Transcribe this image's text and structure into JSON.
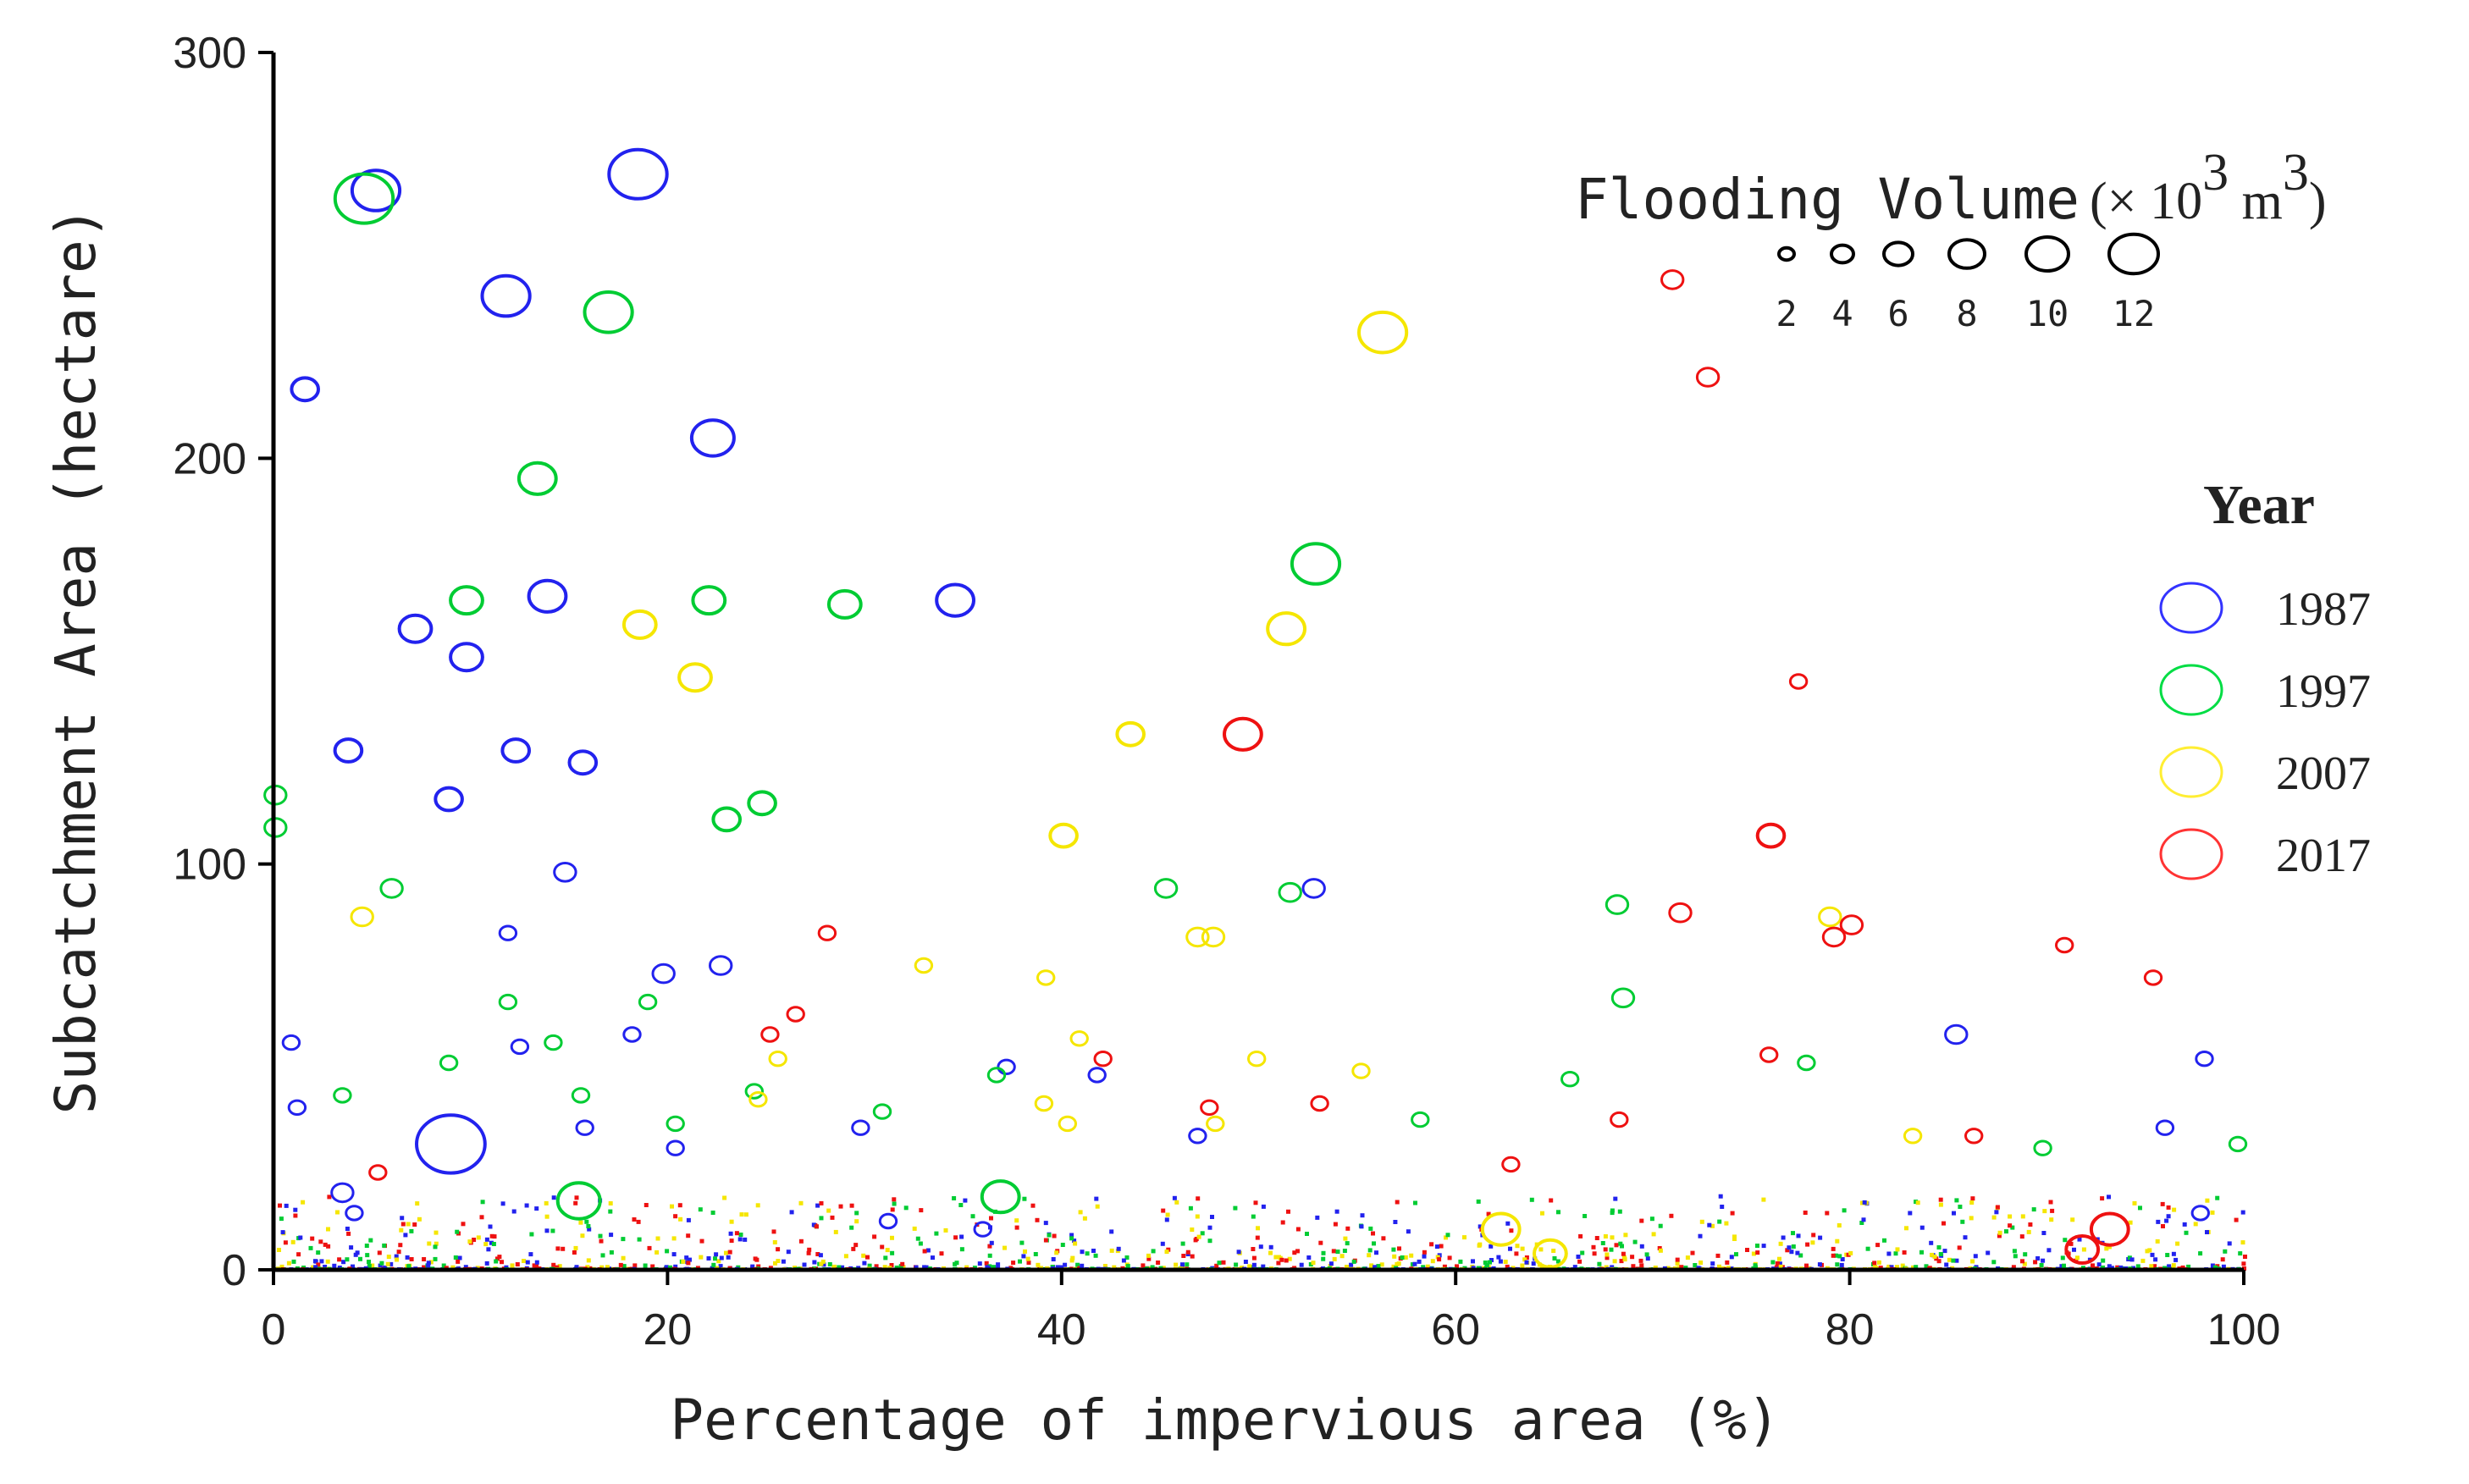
{
  "chart_data": {
    "type": "scatter",
    "xlabel": "Percentage of impervious area (%)",
    "ylabel": "Subcatchment Area (hectare)",
    "xlim": [
      0,
      100
    ],
    "ylim": [
      0,
      300
    ],
    "x_ticks": [
      "0",
      "20",
      "40",
      "60",
      "80",
      "100"
    ],
    "y_ticks": [
      "0",
      "100",
      "200",
      "300"
    ],
    "grid": false,
    "size_legend": {
      "title": "Flooding Volume",
      "unit_prefix": "(× 10",
      "unit_exp1": "3",
      "unit_mid": " m",
      "unit_exp2": "3",
      "unit_suffix": ")",
      "sizes": [
        2,
        4,
        6,
        8,
        10,
        12
      ],
      "labels": [
        "2",
        "4",
        "6",
        "8",
        "10",
        "12"
      ]
    },
    "color_legend": {
      "title": "Year",
      "placement": "right",
      "entries": [
        {
          "label": "1987",
          "color": "#3333ff"
        },
        {
          "label": "1997",
          "color": "#00dd44"
        },
        {
          "label": "2007",
          "color": "#ffee33"
        },
        {
          "label": "2017",
          "color": "#ff3333"
        }
      ]
    },
    "series": [
      {
        "name": "1987",
        "color": "#2222ee",
        "points": [
          {
            "x": 5.2,
            "y": 266,
            "v": 8
          },
          {
            "x": 18.5,
            "y": 270,
            "v": 10
          },
          {
            "x": 11.8,
            "y": 240,
            "v": 8
          },
          {
            "x": 1.6,
            "y": 217,
            "v": 4
          },
          {
            "x": 22.3,
            "y": 205,
            "v": 7
          },
          {
            "x": 7.2,
            "y": 158,
            "v": 5
          },
          {
            "x": 13.9,
            "y": 166,
            "v": 6
          },
          {
            "x": 9.8,
            "y": 151,
            "v": 5
          },
          {
            "x": 34.6,
            "y": 165,
            "v": 6
          },
          {
            "x": 3.8,
            "y": 128,
            "v": 4
          },
          {
            "x": 12.3,
            "y": 128,
            "v": 4
          },
          {
            "x": 15.7,
            "y": 125,
            "v": 4
          },
          {
            "x": 8.9,
            "y": 116,
            "v": 4
          },
          {
            "x": 14.8,
            "y": 98,
            "v": 3
          },
          {
            "x": 52.8,
            "y": 94,
            "v": 3
          },
          {
            "x": 22.7,
            "y": 75,
            "v": 3
          },
          {
            "x": 19.8,
            "y": 73,
            "v": 3
          },
          {
            "x": 9.0,
            "y": 31,
            "v": 12
          },
          {
            "x": 18.2,
            "y": 58,
            "v": 2
          },
          {
            "x": 11.9,
            "y": 83,
            "v": 2
          },
          {
            "x": 0.9,
            "y": 56,
            "v": 2
          },
          {
            "x": 1.2,
            "y": 40,
            "v": 2
          },
          {
            "x": 12.5,
            "y": 55,
            "v": 2
          },
          {
            "x": 3.5,
            "y": 19,
            "v": 3
          },
          {
            "x": 37.2,
            "y": 50,
            "v": 2
          },
          {
            "x": 41.8,
            "y": 48,
            "v": 2
          },
          {
            "x": 85.4,
            "y": 58,
            "v": 3
          },
          {
            "x": 98.0,
            "y": 52,
            "v": 2
          },
          {
            "x": 29.8,
            "y": 35,
            "v": 2
          },
          {
            "x": 46.9,
            "y": 33,
            "v": 2
          },
          {
            "x": 96.0,
            "y": 35,
            "v": 2
          },
          {
            "x": 15.8,
            "y": 35,
            "v": 2
          },
          {
            "x": 20.4,
            "y": 30,
            "v": 2
          },
          {
            "x": 4.1,
            "y": 14,
            "v": 2
          },
          {
            "x": 31.2,
            "y": 12,
            "v": 2
          },
          {
            "x": 36.0,
            "y": 10,
            "v": 2
          },
          {
            "x": 97.8,
            "y": 14,
            "v": 2
          }
        ]
      },
      {
        "name": "1997",
        "color": "#00cc33",
        "points": [
          {
            "x": 4.6,
            "y": 264,
            "v": 10
          },
          {
            "x": 17.0,
            "y": 236,
            "v": 8
          },
          {
            "x": 13.4,
            "y": 195,
            "v": 6
          },
          {
            "x": 52.9,
            "y": 174,
            "v": 8
          },
          {
            "x": 9.8,
            "y": 165,
            "v": 5
          },
          {
            "x": 22.1,
            "y": 165,
            "v": 5
          },
          {
            "x": 29.0,
            "y": 164,
            "v": 5
          },
          {
            "x": 0.1,
            "y": 117,
            "v": 3
          },
          {
            "x": 0.1,
            "y": 109,
            "v": 3
          },
          {
            "x": 24.8,
            "y": 115,
            "v": 4
          },
          {
            "x": 23.0,
            "y": 111,
            "v": 4
          },
          {
            "x": 6.0,
            "y": 94,
            "v": 3
          },
          {
            "x": 45.3,
            "y": 94,
            "v": 3
          },
          {
            "x": 51.6,
            "y": 93,
            "v": 3
          },
          {
            "x": 68.2,
            "y": 90,
            "v": 3
          },
          {
            "x": 68.5,
            "y": 67,
            "v": 3
          },
          {
            "x": 11.9,
            "y": 66,
            "v": 2
          },
          {
            "x": 19.0,
            "y": 66,
            "v": 2
          },
          {
            "x": 8.9,
            "y": 51,
            "v": 2
          },
          {
            "x": 14.2,
            "y": 56,
            "v": 2
          },
          {
            "x": 15.5,
            "y": 17,
            "v": 7
          },
          {
            "x": 36.9,
            "y": 18,
            "v": 6
          },
          {
            "x": 15.6,
            "y": 43,
            "v": 2
          },
          {
            "x": 24.4,
            "y": 44,
            "v": 2
          },
          {
            "x": 30.9,
            "y": 39,
            "v": 2
          },
          {
            "x": 77.8,
            "y": 51,
            "v": 2
          },
          {
            "x": 89.8,
            "y": 30,
            "v": 2
          },
          {
            "x": 99.7,
            "y": 31,
            "v": 2
          },
          {
            "x": 58.2,
            "y": 37,
            "v": 2
          },
          {
            "x": 20.4,
            "y": 36,
            "v": 2
          },
          {
            "x": 36.7,
            "y": 48,
            "v": 2
          },
          {
            "x": 3.5,
            "y": 43,
            "v": 2
          },
          {
            "x": 65.8,
            "y": 47,
            "v": 2
          }
        ]
      },
      {
        "name": "2007",
        "color": "#f5e600",
        "points": [
          {
            "x": 56.3,
            "y": 231,
            "v": 8
          },
          {
            "x": 18.6,
            "y": 159,
            "v": 5
          },
          {
            "x": 51.4,
            "y": 158,
            "v": 6
          },
          {
            "x": 21.4,
            "y": 146,
            "v": 5
          },
          {
            "x": 43.5,
            "y": 132,
            "v": 4
          },
          {
            "x": 40.1,
            "y": 107,
            "v": 4
          },
          {
            "x": 4.5,
            "y": 87,
            "v": 3
          },
          {
            "x": 46.9,
            "y": 82,
            "v": 3
          },
          {
            "x": 47.7,
            "y": 82,
            "v": 3
          },
          {
            "x": 79.0,
            "y": 87,
            "v": 3
          },
          {
            "x": 33.0,
            "y": 75,
            "v": 2
          },
          {
            "x": 39.2,
            "y": 72,
            "v": 2
          },
          {
            "x": 40.9,
            "y": 57,
            "v": 2
          },
          {
            "x": 25.6,
            "y": 52,
            "v": 2
          },
          {
            "x": 49.9,
            "y": 52,
            "v": 2
          },
          {
            "x": 55.2,
            "y": 49,
            "v": 2
          },
          {
            "x": 47.8,
            "y": 36,
            "v": 2
          },
          {
            "x": 40.3,
            "y": 36,
            "v": 2
          },
          {
            "x": 39.1,
            "y": 41,
            "v": 2
          },
          {
            "x": 62.3,
            "y": 10,
            "v": 6
          },
          {
            "x": 64.8,
            "y": 4,
            "v": 5
          },
          {
            "x": 83.2,
            "y": 33,
            "v": 2
          },
          {
            "x": 24.6,
            "y": 42,
            "v": 2
          }
        ]
      },
      {
        "name": "2017",
        "color": "#ee1111",
        "points": [
          {
            "x": 71.0,
            "y": 244,
            "v": 3
          },
          {
            "x": 72.8,
            "y": 220,
            "v": 3
          },
          {
            "x": 49.2,
            "y": 132,
            "v": 6
          },
          {
            "x": 77.4,
            "y": 145,
            "v": 2
          },
          {
            "x": 76.0,
            "y": 107,
            "v": 4
          },
          {
            "x": 71.4,
            "y": 88,
            "v": 3
          },
          {
            "x": 79.2,
            "y": 82,
            "v": 3
          },
          {
            "x": 80.1,
            "y": 85,
            "v": 3
          },
          {
            "x": 90.9,
            "y": 80,
            "v": 2
          },
          {
            "x": 95.4,
            "y": 72,
            "v": 2
          },
          {
            "x": 28.1,
            "y": 83,
            "v": 2
          },
          {
            "x": 26.5,
            "y": 63,
            "v": 2
          },
          {
            "x": 25.2,
            "y": 58,
            "v": 2
          },
          {
            "x": 42.1,
            "y": 52,
            "v": 2
          },
          {
            "x": 53.1,
            "y": 41,
            "v": 2
          },
          {
            "x": 93.2,
            "y": 10,
            "v": 6
          },
          {
            "x": 91.8,
            "y": 5,
            "v": 5
          },
          {
            "x": 62.8,
            "y": 26,
            "v": 2
          },
          {
            "x": 47.5,
            "y": 40,
            "v": 2
          },
          {
            "x": 68.3,
            "y": 37,
            "v": 2
          },
          {
            "x": 5.3,
            "y": 24,
            "v": 2
          },
          {
            "x": 86.3,
            "y": 33,
            "v": 2
          },
          {
            "x": 75.9,
            "y": 53,
            "v": 2
          }
        ]
      }
    ]
  }
}
